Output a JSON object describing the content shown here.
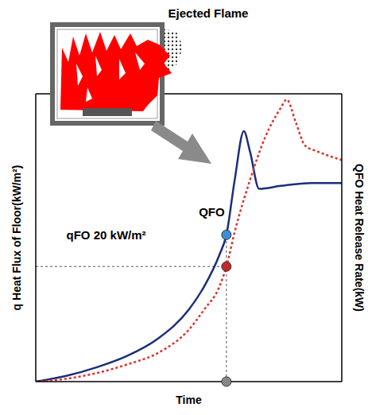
{
  "chart_data": {
    "type": "line",
    "illustration_label": "Ejected Flame",
    "x_label": "Time",
    "y_label": "q Heat Flux of Floor(kW/m²)",
    "y2_label": "QFO Heat Release Rate(kW)",
    "xlim": [
      0,
      10
    ],
    "ylim": [
      0,
      100
    ],
    "y2lim": [
      0,
      100
    ],
    "tick_labels": false,
    "grid": false,
    "series": [
      {
        "name": "QFO Heat Release Rate",
        "axis": "y2",
        "color": "#1c2e7a",
        "line_style": "solid",
        "marker": "none",
        "x": [
          0,
          1,
          2,
          3,
          4,
          5,
          5.5,
          6,
          6.23,
          6.5,
          6.8,
          7.0,
          7.3,
          8,
          9,
          10
        ],
        "values": [
          0,
          2,
          5,
          9,
          15,
          25,
          33,
          44,
          51,
          70,
          87,
          80,
          67,
          68,
          69,
          69
        ]
      },
      {
        "name": "q Heat Flux of Floor",
        "color": "#e0302a",
        "line_style": "dotted",
        "marker": "none",
        "x": [
          0,
          1,
          2,
          3,
          4,
          5,
          5.5,
          6,
          6.23,
          6.5,
          7,
          7.5,
          8,
          8.2,
          8.5,
          8.8,
          9.2,
          10
        ],
        "values": [
          0,
          1,
          3,
          6,
          10,
          18,
          25,
          33,
          40,
          52,
          70,
          85,
          95,
          98,
          90,
          82,
          80,
          77
        ]
      }
    ],
    "points": [
      {
        "x": 6.23,
        "y": 51,
        "axis": "y2",
        "color": "#3a8fd6"
      },
      {
        "x": 6.23,
        "y": 40,
        "color": "#c62828"
      },
      {
        "x": 6.23,
        "y": 0,
        "color": "#888888"
      }
    ],
    "guides": [
      {
        "x": [
          6.23,
          6.23
        ],
        "y": [
          0,
          51
        ],
        "line_style": "dotted"
      },
      {
        "x": [
          0,
          6.23
        ],
        "y": [
          40,
          40
        ],
        "line_style": "dotted"
      }
    ],
    "annotations": [
      {
        "text": "QFO",
        "x": 5.75,
        "y": 59
      },
      {
        "text": "qFO 20 kW/m²",
        "x": 2.3,
        "y": 51
      }
    ]
  }
}
